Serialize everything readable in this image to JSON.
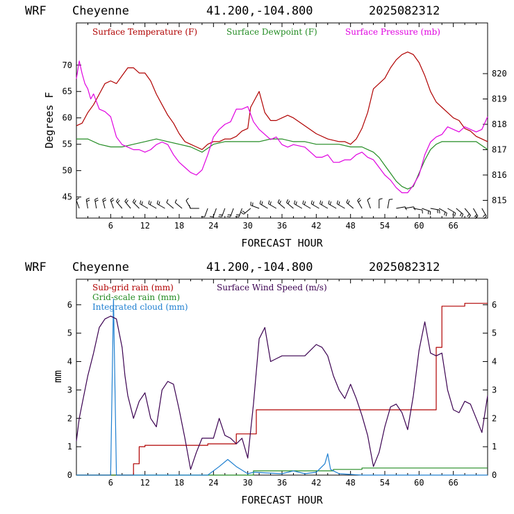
{
  "chart_data": [
    {
      "type": "line",
      "header": {
        "model": "WRF",
        "station": "Cheyenne",
        "coords": "41.200,-104.800",
        "init": "2025082312"
      },
      "xlabel": "FORECAST HOUR",
      "ylabel": "Degrees F",
      "xlim": [
        0,
        72
      ],
      "ylim": [
        41,
        78
      ],
      "y2lim": [
        814.3,
        822.0
      ],
      "x_ticks": [
        6,
        12,
        18,
        24,
        30,
        36,
        42,
        48,
        54,
        60,
        66
      ],
      "x_tick_labels": [
        "6",
        "12",
        "18",
        "24",
        "30",
        "36",
        "42",
        "48",
        "54",
        "60",
        "66"
      ],
      "y_ticks": [
        45,
        50,
        55,
        60,
        65,
        70
      ],
      "y_tick_labels": [
        "45",
        "50",
        "55",
        "60",
        "65",
        "70"
      ],
      "y2_ticks": [
        815,
        816,
        817,
        818,
        819,
        820
      ],
      "y2_tick_labels": [
        "815",
        "816",
        "817",
        "818",
        "819",
        "820"
      ],
      "series": [
        {
          "name": "Surface Temperature (F)",
          "axis": "left",
          "color": "#b00000",
          "x": [
            0,
            1,
            2,
            3,
            4,
            5,
            6,
            7,
            8,
            9,
            10,
            11,
            12,
            13,
            14,
            15,
            16,
            17,
            18,
            19,
            20,
            21,
            22,
            23,
            24,
            25,
            26,
            27,
            28,
            29,
            30,
            30.5,
            31,
            32,
            33,
            34,
            35,
            36,
            37,
            38,
            40,
            42,
            44,
            46,
            47,
            48,
            49,
            50,
            51,
            52,
            53,
            54,
            55,
            56,
            57,
            58,
            59,
            60,
            61,
            62,
            63,
            64,
            65,
            66,
            67,
            68,
            69,
            70,
            71,
            72
          ],
          "values": [
            58.5,
            59,
            61,
            62.5,
            64.5,
            66.5,
            67,
            66.5,
            68,
            69.5,
            69.5,
            68.5,
            68.5,
            67,
            64.5,
            62.5,
            60.5,
            59,
            57,
            55.5,
            55,
            54.5,
            54,
            55,
            55.5,
            55.5,
            56,
            56,
            56.5,
            57.5,
            58,
            62,
            63,
            65,
            61,
            59.5,
            59.5,
            60,
            60.5,
            60,
            58.5,
            57,
            56,
            55.5,
            55.5,
            55,
            56,
            58,
            61,
            65.5,
            66.5,
            67.5,
            69.5,
            71,
            72,
            72.5,
            72,
            70.5,
            68,
            65,
            63,
            62,
            61,
            60,
            59.5,
            58,
            57.5,
            56.5,
            56,
            55.5
          ]
        },
        {
          "name": "Surface Dewpoint (F)",
          "axis": "left",
          "color": "#228b22",
          "x": [
            0,
            2,
            4,
            6,
            8,
            10,
            12,
            14,
            16,
            18,
            20,
            22,
            24,
            26,
            28,
            30,
            32,
            34,
            36,
            38,
            40,
            42,
            44,
            46,
            48,
            50,
            51,
            52,
            53,
            54,
            55,
            56,
            57,
            58,
            59,
            60,
            61,
            62,
            63,
            64,
            66,
            68,
            70,
            72
          ],
          "values": [
            56,
            56,
            55,
            54.5,
            54.5,
            55,
            55.5,
            56,
            55.5,
            55,
            54.5,
            53.5,
            55,
            55.5,
            55.5,
            55.5,
            55.5,
            56,
            56,
            55.5,
            55.5,
            55,
            55,
            55,
            54.5,
            54.5,
            54,
            53.5,
            52.5,
            51,
            49.5,
            48,
            47,
            46.5,
            47,
            49.5,
            52,
            54,
            55,
            55.5,
            55.5,
            55.5,
            55.5,
            54
          ]
        },
        {
          "name": "Surface Pressure (mb)",
          "axis": "right",
          "color": "#e000e0",
          "x": [
            0,
            0.5,
            1,
            1.5,
            2,
            2.5,
            3,
            4,
            5,
            6,
            7,
            8,
            9,
            10,
            11,
            12,
            13,
            14,
            15,
            16,
            17,
            18,
            19,
            20,
            21,
            22,
            23,
            24,
            25,
            26,
            27,
            28,
            29,
            30,
            31,
            32,
            33,
            34,
            35,
            36,
            37,
            38,
            40,
            42,
            43,
            44,
            45,
            46,
            47,
            48,
            49,
            50,
            51,
            52,
            53,
            54,
            55,
            56,
            57,
            58,
            59,
            60,
            61,
            62,
            63,
            64,
            65,
            66,
            67,
            68,
            69,
            70,
            71,
            72
          ],
          "values": [
            819.8,
            820.5,
            820.0,
            819.6,
            819.4,
            819.0,
            819.2,
            818.6,
            818.5,
            818.3,
            817.5,
            817.2,
            817.1,
            817.0,
            817.0,
            816.9,
            817.0,
            817.2,
            817.3,
            817.2,
            816.8,
            816.5,
            816.3,
            816.1,
            816.0,
            816.2,
            816.8,
            817.5,
            817.8,
            818.0,
            818.1,
            818.6,
            818.6,
            818.7,
            818.1,
            817.8,
            817.6,
            817.4,
            817.5,
            817.2,
            817.1,
            817.2,
            817.1,
            816.7,
            816.7,
            816.8,
            816.5,
            816.5,
            816.6,
            816.6,
            816.8,
            816.9,
            816.7,
            816.6,
            816.3,
            816.0,
            815.8,
            815.5,
            815.3,
            815.3,
            815.6,
            816.0,
            816.8,
            817.3,
            817.5,
            817.6,
            817.9,
            817.8,
            817.7,
            817.9,
            817.8,
            817.7,
            817.8,
            818.3
          ]
        }
      ],
      "wind_barbs": {
        "x": [
          0.5,
          2,
          3.5,
          5,
          6.5,
          8,
          9.5,
          11,
          12.5,
          14,
          15.5,
          17,
          18.5,
          20,
          21.5,
          23,
          24.5,
          26,
          27.5,
          29,
          30.5,
          32,
          33.5,
          35,
          36.5,
          38,
          39.5,
          41,
          42.5,
          44,
          45.5,
          47,
          48.5,
          50,
          51.5,
          53,
          54.5,
          56,
          57.5,
          59,
          60.5,
          62,
          63.5,
          65,
          66.5,
          68,
          69.5,
          71
        ],
        "dir_deg": [
          340,
          350,
          350,
          345,
          340,
          320,
          320,
          315,
          300,
          300,
          300,
          310,
          310,
          330,
          270,
          200,
          200,
          200,
          200,
          200,
          230,
          290,
          300,
          300,
          310,
          310,
          300,
          300,
          300,
          300,
          300,
          300,
          310,
          330,
          340,
          0,
          10,
          80,
          80,
          100,
          110,
          100,
          120,
          120,
          130,
          140,
          150,
          150
        ],
        "speed_ms": [
          2,
          3,
          3,
          3,
          4,
          4,
          4,
          4,
          3,
          3,
          3,
          2,
          2,
          2,
          1,
          1,
          2,
          3,
          3,
          3,
          3,
          4,
          4,
          4,
          4,
          4,
          4,
          4,
          4,
          4,
          4,
          4,
          3,
          3,
          2,
          1,
          1,
          1,
          2,
          2,
          3,
          3,
          3,
          3,
          3,
          3,
          3,
          3
        ]
      }
    },
    {
      "type": "line",
      "header": {
        "model": "WRF",
        "station": "Cheyenne",
        "coords": "41.200,-104.800",
        "init": "2025082312"
      },
      "xlabel": "FORECAST HOUR",
      "ylabel": "mm",
      "xlim": [
        0,
        72
      ],
      "ylim": [
        0,
        6.9
      ],
      "y2lim": [
        0,
        6.9
      ],
      "x_ticks": [
        6,
        12,
        18,
        24,
        30,
        36,
        42,
        48,
        54,
        60,
        66
      ],
      "x_tick_labels": [
        "6",
        "12",
        "18",
        "24",
        "30",
        "36",
        "42",
        "48",
        "54",
        "60",
        "66"
      ],
      "y_ticks": [
        0,
        1,
        2,
        3,
        4,
        5,
        6
      ],
      "y_tick_labels": [
        "0",
        "1",
        "2",
        "3",
        "4",
        "5",
        "6"
      ],
      "y2_ticks": [
        0,
        1,
        2,
        3,
        4,
        5,
        6
      ],
      "y2_tick_labels": [
        "0",
        "1",
        "2",
        "3",
        "4",
        "5",
        "6"
      ],
      "series": [
        {
          "name": "Sub-grid rain (mm)",
          "axis": "left",
          "color": "#b00000",
          "step": true,
          "x": [
            0,
            9,
            10,
            11,
            12,
            23,
            28,
            31.5,
            50,
            62,
            63,
            64,
            68,
            72
          ],
          "values": [
            0,
            0,
            0.4,
            1.0,
            1.05,
            1.1,
            1.45,
            2.3,
            2.3,
            2.3,
            4.5,
            5.95,
            6.05,
            6.05
          ]
        },
        {
          "name": "Grid-scale rain (mm)",
          "axis": "left",
          "color": "#228b22",
          "step": true,
          "x": [
            0,
            29,
            31,
            45,
            50,
            72
          ],
          "values": [
            0,
            0,
            0.15,
            0.2,
            0.25,
            0.25
          ]
        },
        {
          "name": "Integrated cloud (mm)",
          "axis": "left",
          "color": "#1e7fd0",
          "x": [
            0,
            6,
            6.5,
            7,
            8,
            23,
            25,
            26.5,
            28,
            30,
            31,
            36,
            38,
            40,
            42,
            43.5,
            44,
            44.5,
            46,
            50,
            72
          ],
          "values": [
            0,
            0,
            6.2,
            0,
            0,
            0,
            0.3,
            0.55,
            0.3,
            0.05,
            0.1,
            0.05,
            0.15,
            0.05,
            0.1,
            0.4,
            0.75,
            0.2,
            0.05,
            0,
            0
          ]
        },
        {
          "name": "Surface Wind Speed (m/s)",
          "axis": "right",
          "color": "#3a0050",
          "x": [
            0,
            0.5,
            1,
            2,
            3,
            4,
            5,
            6,
            7,
            8,
            8.5,
            9,
            10,
            11,
            12,
            13,
            14,
            15,
            16,
            17,
            18,
            19,
            20,
            21,
            22,
            23,
            24,
            25,
            26,
            27,
            28,
            29,
            30,
            31,
            32,
            33,
            34,
            35,
            36,
            38,
            40,
            42,
            43,
            44,
            45,
            46,
            47,
            48,
            49,
            50,
            51,
            52,
            53,
            54,
            55,
            56,
            57,
            58,
            59,
            60,
            61,
            62,
            63,
            64,
            65,
            66,
            67,
            68,
            69,
            70,
            71,
            72
          ],
          "values": [
            1.2,
            2.0,
            2.5,
            3.5,
            4.3,
            5.2,
            5.5,
            5.6,
            5.5,
            4.5,
            3.5,
            2.8,
            2.0,
            2.6,
            2.9,
            2.0,
            1.7,
            3.0,
            3.3,
            3.2,
            2.3,
            1.3,
            0.2,
            0.8,
            1.3,
            1.3,
            1.3,
            2.0,
            1.4,
            1.3,
            1.1,
            1.3,
            0.6,
            2.5,
            4.8,
            5.2,
            4.0,
            4.1,
            4.2,
            4.2,
            4.2,
            4.6,
            4.5,
            4.2,
            3.5,
            3.0,
            2.7,
            3.2,
            2.7,
            2.1,
            1.4,
            0.3,
            0.8,
            1.7,
            2.4,
            2.5,
            2.2,
            1.6,
            2.8,
            4.4,
            5.4,
            4.3,
            4.2,
            4.3,
            3.0,
            2.3,
            2.2,
            2.6,
            2.5,
            2.0,
            1.5,
            2.8
          ]
        }
      ]
    }
  ]
}
